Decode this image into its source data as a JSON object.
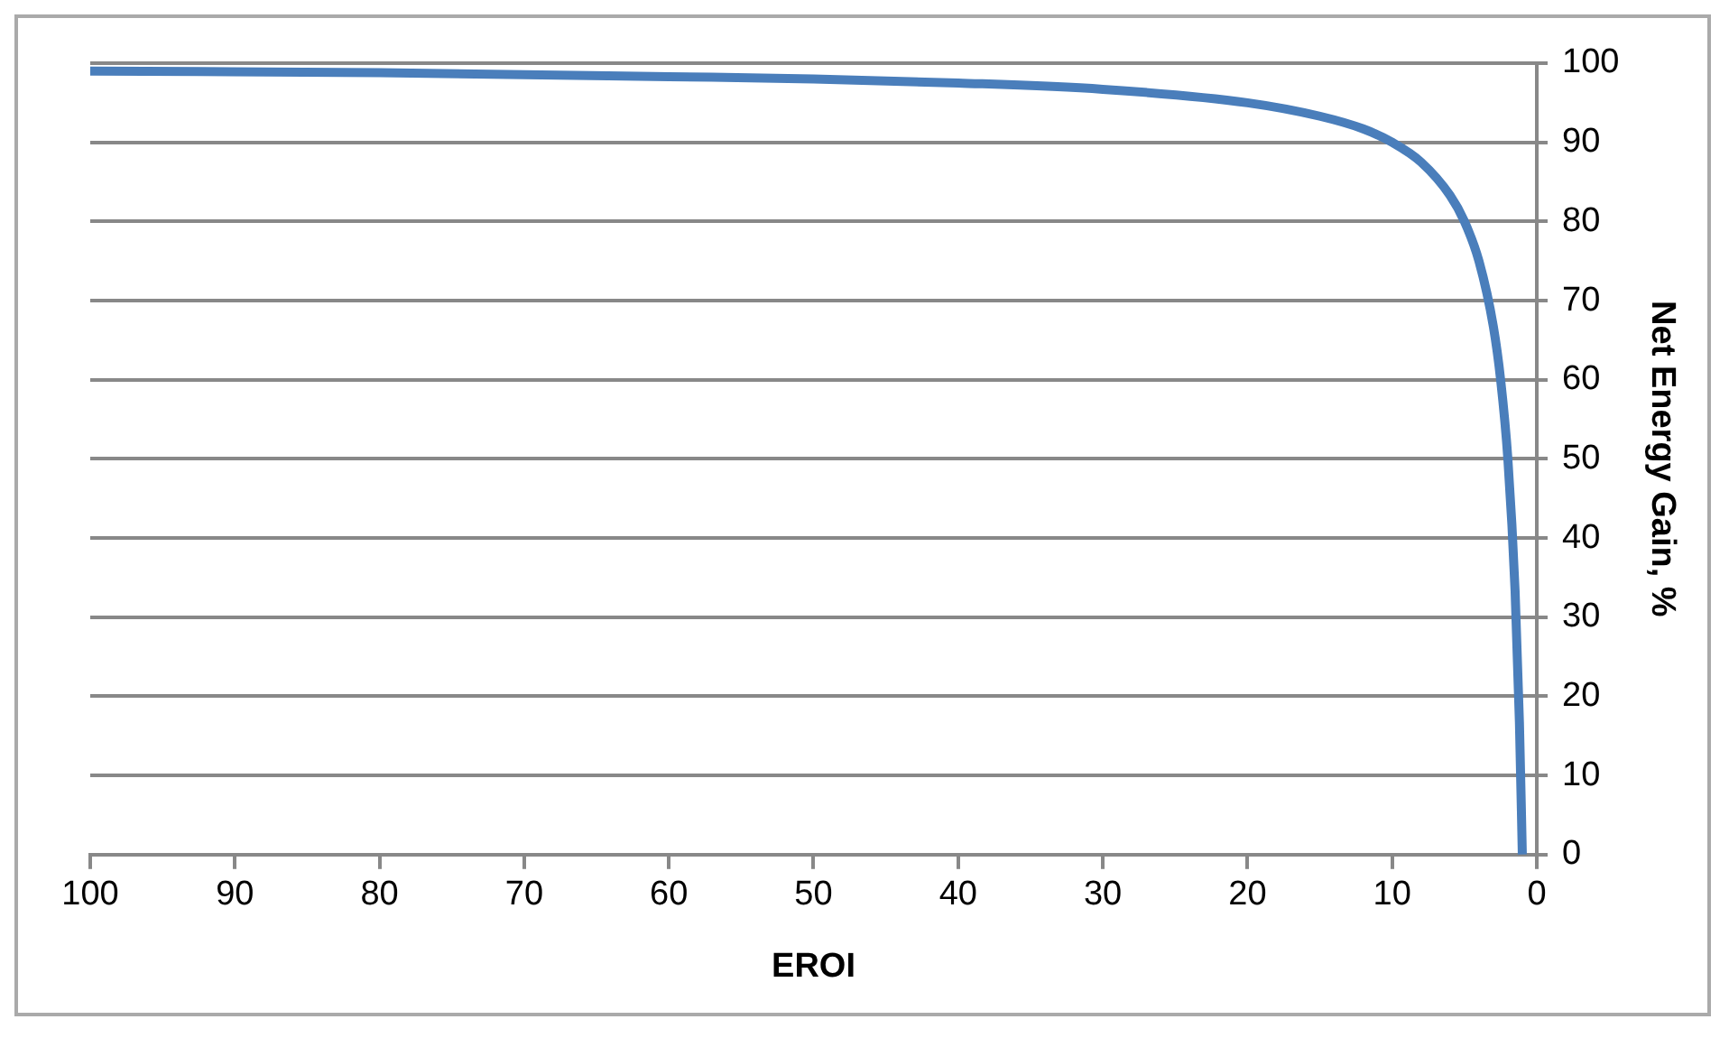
{
  "chart_data": {
    "type": "line",
    "xlabel": "EROI",
    "ylabel": "Net Energy Gain, %",
    "series": [
      {
        "color": "#4a7ebb",
        "x": [
          100,
          80,
          60,
          50,
          40,
          30,
          20,
          15,
          12,
          10,
          8,
          6,
          5,
          4,
          3,
          2.5,
          2,
          1.5,
          1.2,
          1
        ],
        "values": [
          99,
          98.8,
          98.3,
          98,
          97.5,
          96.7,
          95,
          93.3,
          91.7,
          90,
          87.5,
          83.3,
          80,
          75,
          66.7,
          60,
          50,
          33.3,
          16.7,
          0
        ]
      }
    ],
    "xlim": [
      100,
      0
    ],
    "xticks": [
      100,
      90,
      80,
      70,
      60,
      50,
      40,
      30,
      20,
      10,
      0
    ],
    "ylim": [
      0,
      100
    ],
    "yticks": [
      0,
      10,
      20,
      30,
      40,
      50,
      60,
      70,
      80,
      90,
      100
    ],
    "grid": "y",
    "legend": false,
    "marker": "none",
    "line_style": "solid"
  }
}
